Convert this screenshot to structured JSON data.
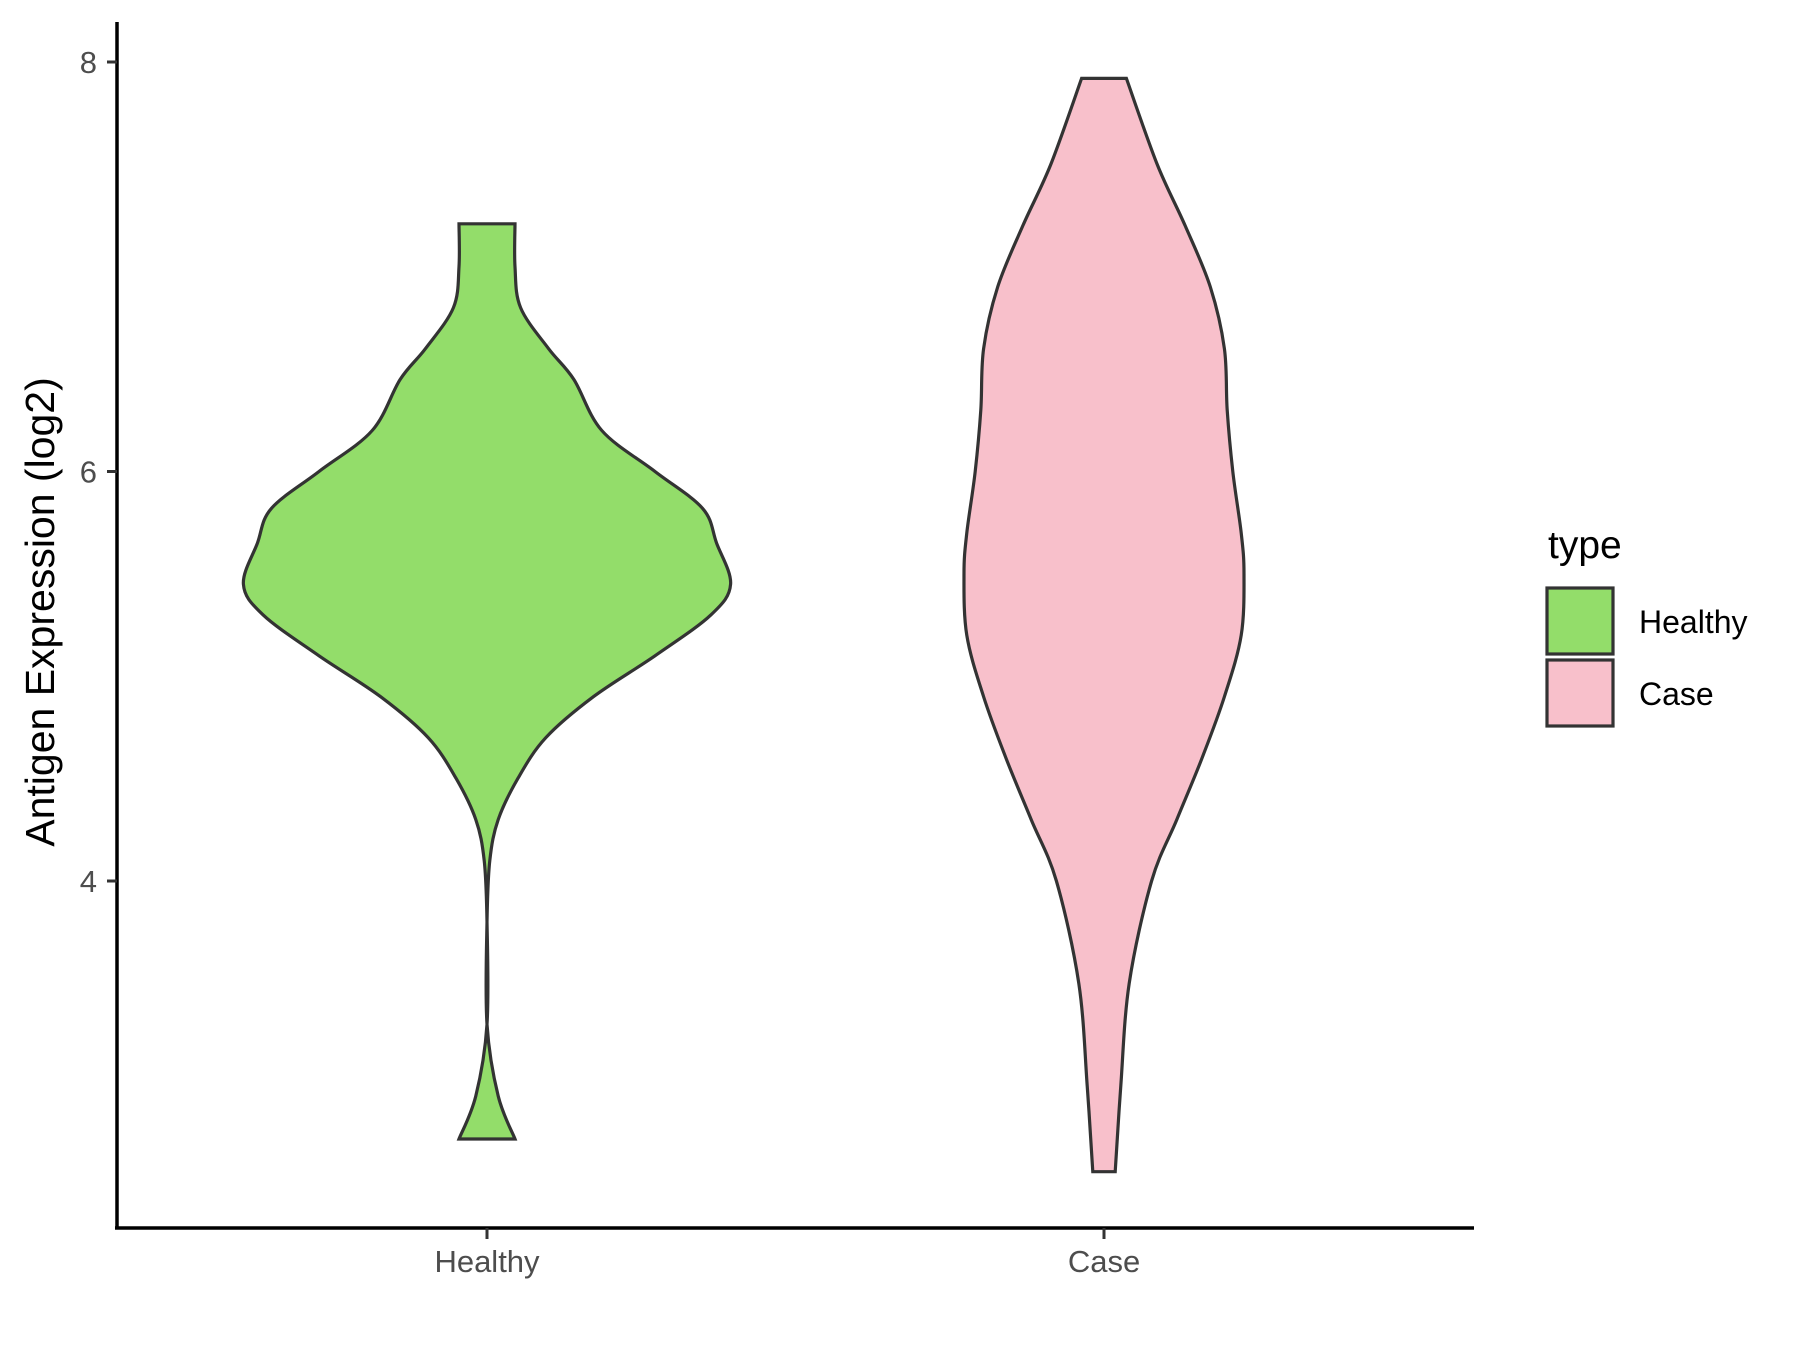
{
  "chart_data": {
    "type": "violin",
    "title": "",
    "xlabel": "",
    "ylabel": "Antigen Expression (log2)",
    "categories": [
      "Healthy",
      "Case"
    ],
    "y_ticks": [
      4,
      6,
      8
    ],
    "ylim": [
      2.35,
      8.2
    ],
    "grid": false,
    "legend": {
      "title": "type",
      "placement": "right",
      "entries": [
        {
          "label": "Healthy",
          "color": "#93dd6a"
        },
        {
          "label": "Case",
          "color": "#f8c0cb"
        }
      ]
    },
    "outline_color": "#333333",
    "series": [
      {
        "category": "Healthy",
        "color": "#93dd6a",
        "y_min": 2.74,
        "y_max": 7.21,
        "density_profile": [
          [
            2.74,
            0.1
          ],
          [
            2.95,
            0.04
          ],
          [
            3.3,
            0.0
          ],
          [
            3.8,
            0.0
          ],
          [
            4.1,
            0.01
          ],
          [
            4.3,
            0.04
          ],
          [
            4.5,
            0.11
          ],
          [
            4.7,
            0.21
          ],
          [
            4.9,
            0.38
          ],
          [
            5.1,
            0.6
          ],
          [
            5.3,
            0.8
          ],
          [
            5.45,
            0.87
          ],
          [
            5.65,
            0.82
          ],
          [
            5.82,
            0.77
          ],
          [
            6.0,
            0.6
          ],
          [
            6.2,
            0.41
          ],
          [
            6.45,
            0.31
          ],
          [
            6.6,
            0.22
          ],
          [
            6.8,
            0.12
          ],
          [
            7.0,
            0.1
          ],
          [
            7.21,
            0.1
          ]
        ]
      },
      {
        "category": "Case",
        "color": "#f8c0cb",
        "y_min": 2.58,
        "y_max": 7.92,
        "density_profile": [
          [
            2.58,
            0.04
          ],
          [
            3.0,
            0.06
          ],
          [
            3.5,
            0.09
          ],
          [
            4.0,
            0.17
          ],
          [
            4.3,
            0.26
          ],
          [
            4.6,
            0.35
          ],
          [
            4.9,
            0.43
          ],
          [
            5.2,
            0.49
          ],
          [
            5.5,
            0.5
          ],
          [
            5.7,
            0.49
          ],
          [
            6.0,
            0.46
          ],
          [
            6.3,
            0.44
          ],
          [
            6.6,
            0.43
          ],
          [
            6.9,
            0.38
          ],
          [
            7.2,
            0.29
          ],
          [
            7.5,
            0.19
          ],
          [
            7.92,
            0.08
          ]
        ]
      }
    ]
  }
}
